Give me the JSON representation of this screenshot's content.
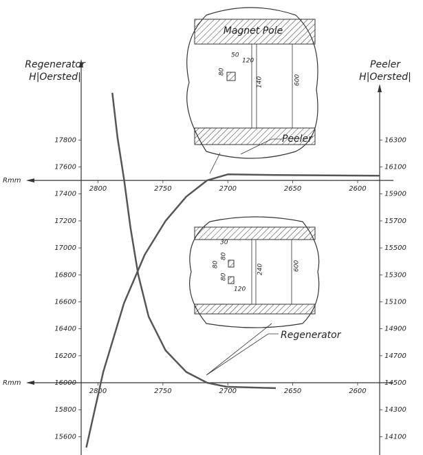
{
  "chart_data": {
    "type": "line",
    "left_axis_label": [
      "Regenerator",
      "H|Oersted|"
    ],
    "right_axis_label": [
      "Peeler",
      "H|Oersted|"
    ],
    "x_axis_label": "Rmm",
    "xlim": [
      2813,
      2583
    ],
    "xticks": [
      2800,
      2750,
      2700,
      2650,
      2600
    ],
    "x_axes_at_y2": [
      16000,
      14500
    ],
    "ylim": [
      15500,
      18200
    ],
    "yticks": [
      17800,
      17600,
      17400,
      17200,
      17000,
      16800,
      16600,
      16400,
      16200,
      16000,
      15800,
      15600
    ],
    "y2lim": [
      14000,
      16700
    ],
    "y2ticks": [
      16300,
      16100,
      15900,
      15700,
      15500,
      15300,
      15100,
      14900,
      14700,
      14500,
      14300,
      14100
    ],
    "series": [
      {
        "name": "Peeler",
        "color": "#555555",
        "axis": "y2",
        "x": [
          2809,
          2796,
          2780,
          2764,
          2748,
          2732,
          2716,
          2700,
          2663,
          2583
        ],
        "values": [
          14020,
          14580,
          15090,
          15450,
          15700,
          15880,
          16000,
          16045,
          16040,
          16035
        ]
      },
      {
        "name": "Regenerator",
        "color": "#555555",
        "x": [
          2789,
          2785,
          2780,
          2775,
          2769,
          2761,
          2748,
          2732,
          2716,
          2701,
          2663
        ],
        "values": [
          18150,
          17820,
          17510,
          17150,
          16800,
          16490,
          16240,
          16080,
          16000,
          15970,
          15960
        ]
      }
    ],
    "insets": [
      {
        "title": "Magnet Pole",
        "dims": [
          "50",
          "120",
          "80",
          "140",
          "600"
        ]
      },
      {
        "dims": [
          "30",
          "80",
          "80",
          "80",
          "120",
          "240",
          "600"
        ]
      }
    ]
  }
}
